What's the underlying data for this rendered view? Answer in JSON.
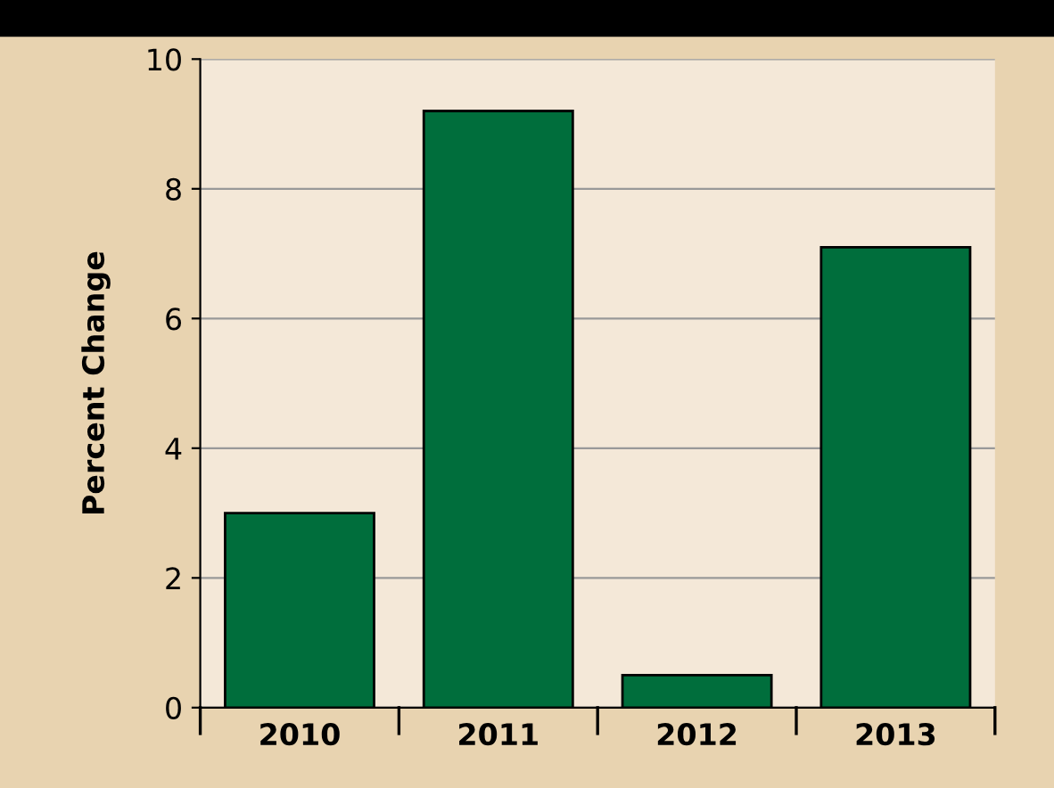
{
  "chart_data": {
    "type": "bar",
    "ylabel": "Percent Change",
    "categories": [
      "2010",
      "2011",
      "2012",
      "2013"
    ],
    "values": [
      3.0,
      9.2,
      0.5,
      7.1
    ],
    "color": "#006e3c",
    "ylim": [
      0,
      10
    ],
    "yticks": [
      0,
      2,
      4,
      6,
      8,
      10
    ],
    "grid": "y"
  }
}
